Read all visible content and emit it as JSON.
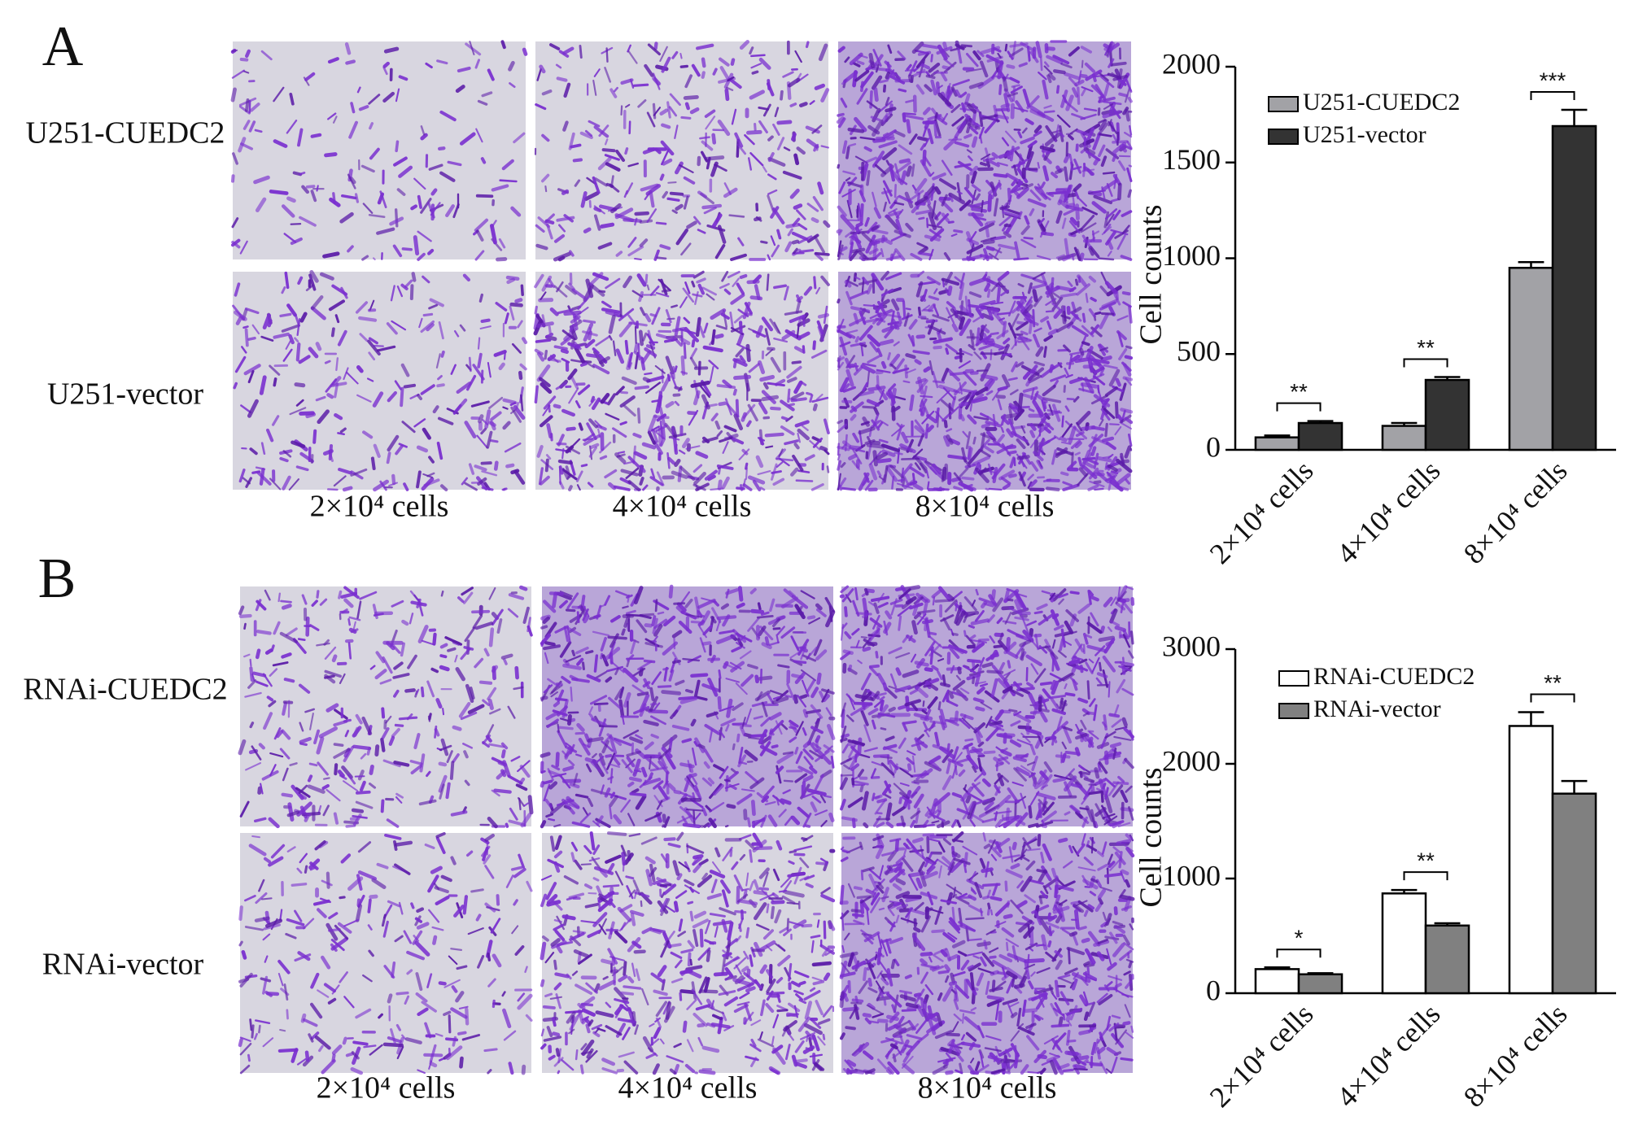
{
  "panels": [
    {
      "label": "A",
      "rows": [
        "U251-CUEDC2",
        "U251-vector"
      ],
      "columns": [
        "2×10⁴ cells",
        "4×10⁴ cells",
        "8×10⁴ cells"
      ]
    },
    {
      "label": "B",
      "rows": [
        "RNAi-CUEDC2",
        "RNAi-vector"
      ],
      "columns": [
        "2×10⁴ cells",
        "4×10⁴ cells",
        "8×10⁴ cells"
      ]
    }
  ],
  "chart_data": [
    {
      "type": "bar",
      "y_label": "Cell counts",
      "categories": [
        "2×10⁴ cells",
        "4×10⁴ cells",
        "8×10⁴ cells"
      ],
      "series": [
        {
          "name": "U251-CUEDC2",
          "color": "#a2a2a6",
          "values": [
            65,
            125,
            950
          ],
          "errors": [
            10,
            15,
            30
          ]
        },
        {
          "name": "U251-vector",
          "color": "#333333",
          "values": [
            140,
            365,
            1690
          ],
          "errors": [
            10,
            15,
            85
          ]
        }
      ],
      "annotations": [
        "**",
        "**",
        "***"
      ],
      "ylim": [
        0,
        2000
      ],
      "yticks": [
        0,
        500,
        1000,
        1500,
        2000
      ]
    },
    {
      "type": "bar",
      "y_label": "Cell counts",
      "categories": [
        "2×10⁴ cells",
        "4×10⁴ cells",
        "8×10⁴ cells"
      ],
      "series": [
        {
          "name": "RNAi-CUEDC2",
          "color": "#ffffff",
          "values": [
            210,
            870,
            2330
          ],
          "errors": [
            15,
            30,
            120
          ]
        },
        {
          "name": "RNAi-vector",
          "color": "#808080",
          "values": [
            165,
            590,
            1740
          ],
          "errors": [
            10,
            20,
            110
          ]
        }
      ],
      "annotations": [
        "*",
        "**",
        "**"
      ],
      "ylim": [
        0,
        3000
      ],
      "yticks": [
        0,
        1000,
        2000,
        3000
      ]
    }
  ]
}
